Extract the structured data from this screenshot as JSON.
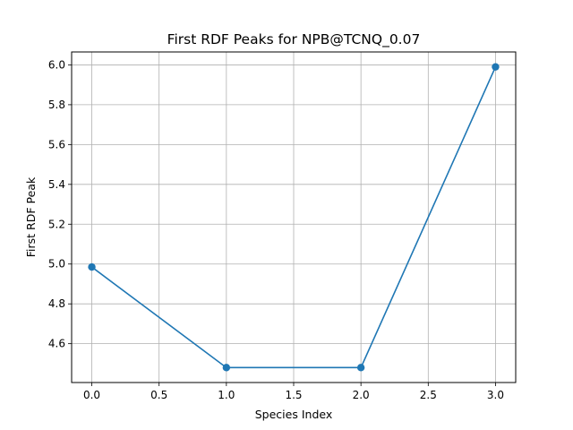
{
  "chart_data": {
    "type": "line",
    "title": "First RDF Peaks for NPB@TCNQ_0.07",
    "xlabel": "Species Index",
    "ylabel": "First RDF Peak",
    "x": [
      0,
      1,
      2,
      3
    ],
    "values": [
      4.985,
      4.48,
      4.48,
      5.99
    ],
    "xlim": [
      -0.15,
      3.15
    ],
    "ylim": [
      4.405,
      6.065
    ],
    "xticks": [
      0.0,
      0.5,
      1.0,
      1.5,
      2.0,
      2.5,
      3.0
    ],
    "xtick_labels": [
      "0.0",
      "0.5",
      "1.0",
      "1.5",
      "2.0",
      "2.5",
      "3.0"
    ],
    "yticks": [
      4.6,
      4.8,
      5.0,
      5.2,
      5.4,
      5.6,
      5.8,
      6.0
    ],
    "ytick_labels": [
      "4.6",
      "4.8",
      "5.0",
      "5.2",
      "5.4",
      "5.6",
      "5.8",
      "6.0"
    ],
    "grid": true,
    "marker": "circle",
    "line_color": "#1f77b4",
    "grid_color": "#b0b0b0"
  }
}
